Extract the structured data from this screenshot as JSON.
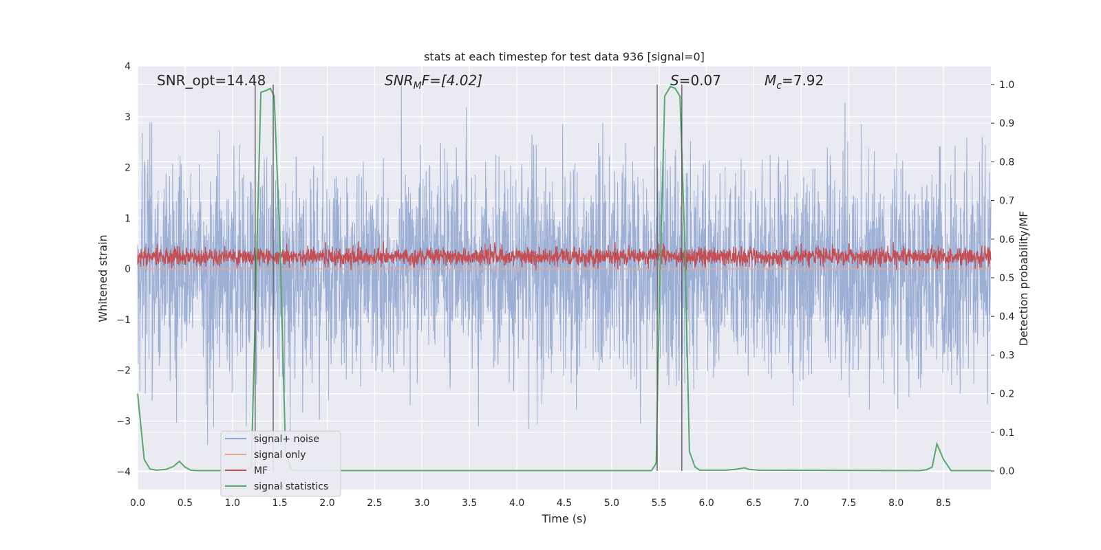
{
  "chart_data": {
    "type": "line",
    "title": "stats at each timestep for test data 936 [signal=0]",
    "xlabel": "Time (s)",
    "ylabel_left": "Whitened strain",
    "ylabel_right": "Detection probability/MF",
    "xlim": [
      0,
      9.0
    ],
    "ylim_left": [
      -4.35,
      4.0
    ],
    "ylim_right": [
      -0.048,
      1.048
    ],
    "x_ticks": [
      "0.0",
      "0.5",
      "1.0",
      "1.5",
      "2.0",
      "2.5",
      "3.0",
      "3.5",
      "4.0",
      "4.5",
      "5.0",
      "5.5",
      "6.0",
      "6.5",
      "7.0",
      "7.5",
      "8.0",
      "8.5"
    ],
    "y_left_ticks": [
      "−4",
      "−3",
      "−2",
      "−1",
      "0",
      "1",
      "2",
      "3",
      "4"
    ],
    "y_right_ticks": [
      "0.0",
      "0.1",
      "0.2",
      "0.3",
      "0.4",
      "0.5",
      "0.6",
      "0.7",
      "0.8",
      "0.9",
      "1.0"
    ],
    "grid": true,
    "legend_position": "lower-left",
    "annotations": {
      "snr_opt": "SNR_opt=14.48",
      "snr_mf_sym": "SNR",
      "snr_mf_sub": "M",
      "snr_mf_rest": "F=[4.02]",
      "s_sym": "S",
      "s_rest": "=0.07",
      "mc_sym": "M",
      "mc_sub": "c",
      "mc_rest": "=7.92"
    },
    "vertical_lines_x": [
      1.24,
      1.43,
      5.48,
      5.74
    ],
    "series": [
      {
        "name": "signal+ noise",
        "color": "#8ea5cf",
        "axis": "left",
        "description_values": {
          "mean": 0.0,
          "std": 1.0,
          "min": -4.0,
          "max": 3.65
        }
      },
      {
        "name": "signal only",
        "color": "#e9a98f",
        "axis": "left",
        "values_constant": 0.0
      },
      {
        "name": "MF",
        "color": "#c44e52",
        "axis": "right",
        "description_values": {
          "mean": 0.555,
          "min": 0.52,
          "max": 0.63
        }
      },
      {
        "name": "signal statistics",
        "color": "#55a868",
        "axis": "right",
        "x": [
          0.0,
          0.07,
          0.13,
          0.2,
          0.3,
          0.38,
          0.44,
          0.5,
          0.56,
          0.62,
          1.14,
          1.2,
          1.25,
          1.3,
          1.36,
          1.4,
          1.44,
          1.5,
          1.56,
          1.62,
          1.7,
          5.42,
          5.47,
          5.5,
          5.56,
          5.62,
          5.67,
          5.72,
          5.77,
          5.82,
          5.88,
          5.93,
          6.2,
          6.3,
          6.4,
          6.45,
          6.55,
          8.25,
          8.32,
          8.38,
          8.43,
          8.5,
          8.58,
          8.65,
          9.0
        ],
        "values": [
          0.2,
          0.03,
          0.005,
          0.002,
          0.004,
          0.012,
          0.025,
          0.01,
          0.002,
          0.001,
          0.001,
          0.01,
          0.5,
          0.98,
          0.985,
          0.99,
          0.97,
          0.6,
          0.05,
          0.002,
          0.001,
          0.001,
          0.02,
          0.4,
          0.97,
          0.995,
          0.99,
          0.97,
          0.6,
          0.05,
          0.01,
          0.002,
          0.002,
          0.004,
          0.008,
          0.004,
          0.002,
          0.001,
          0.003,
          0.01,
          0.07,
          0.03,
          0.001,
          0.001,
          0.001
        ]
      }
    ]
  }
}
